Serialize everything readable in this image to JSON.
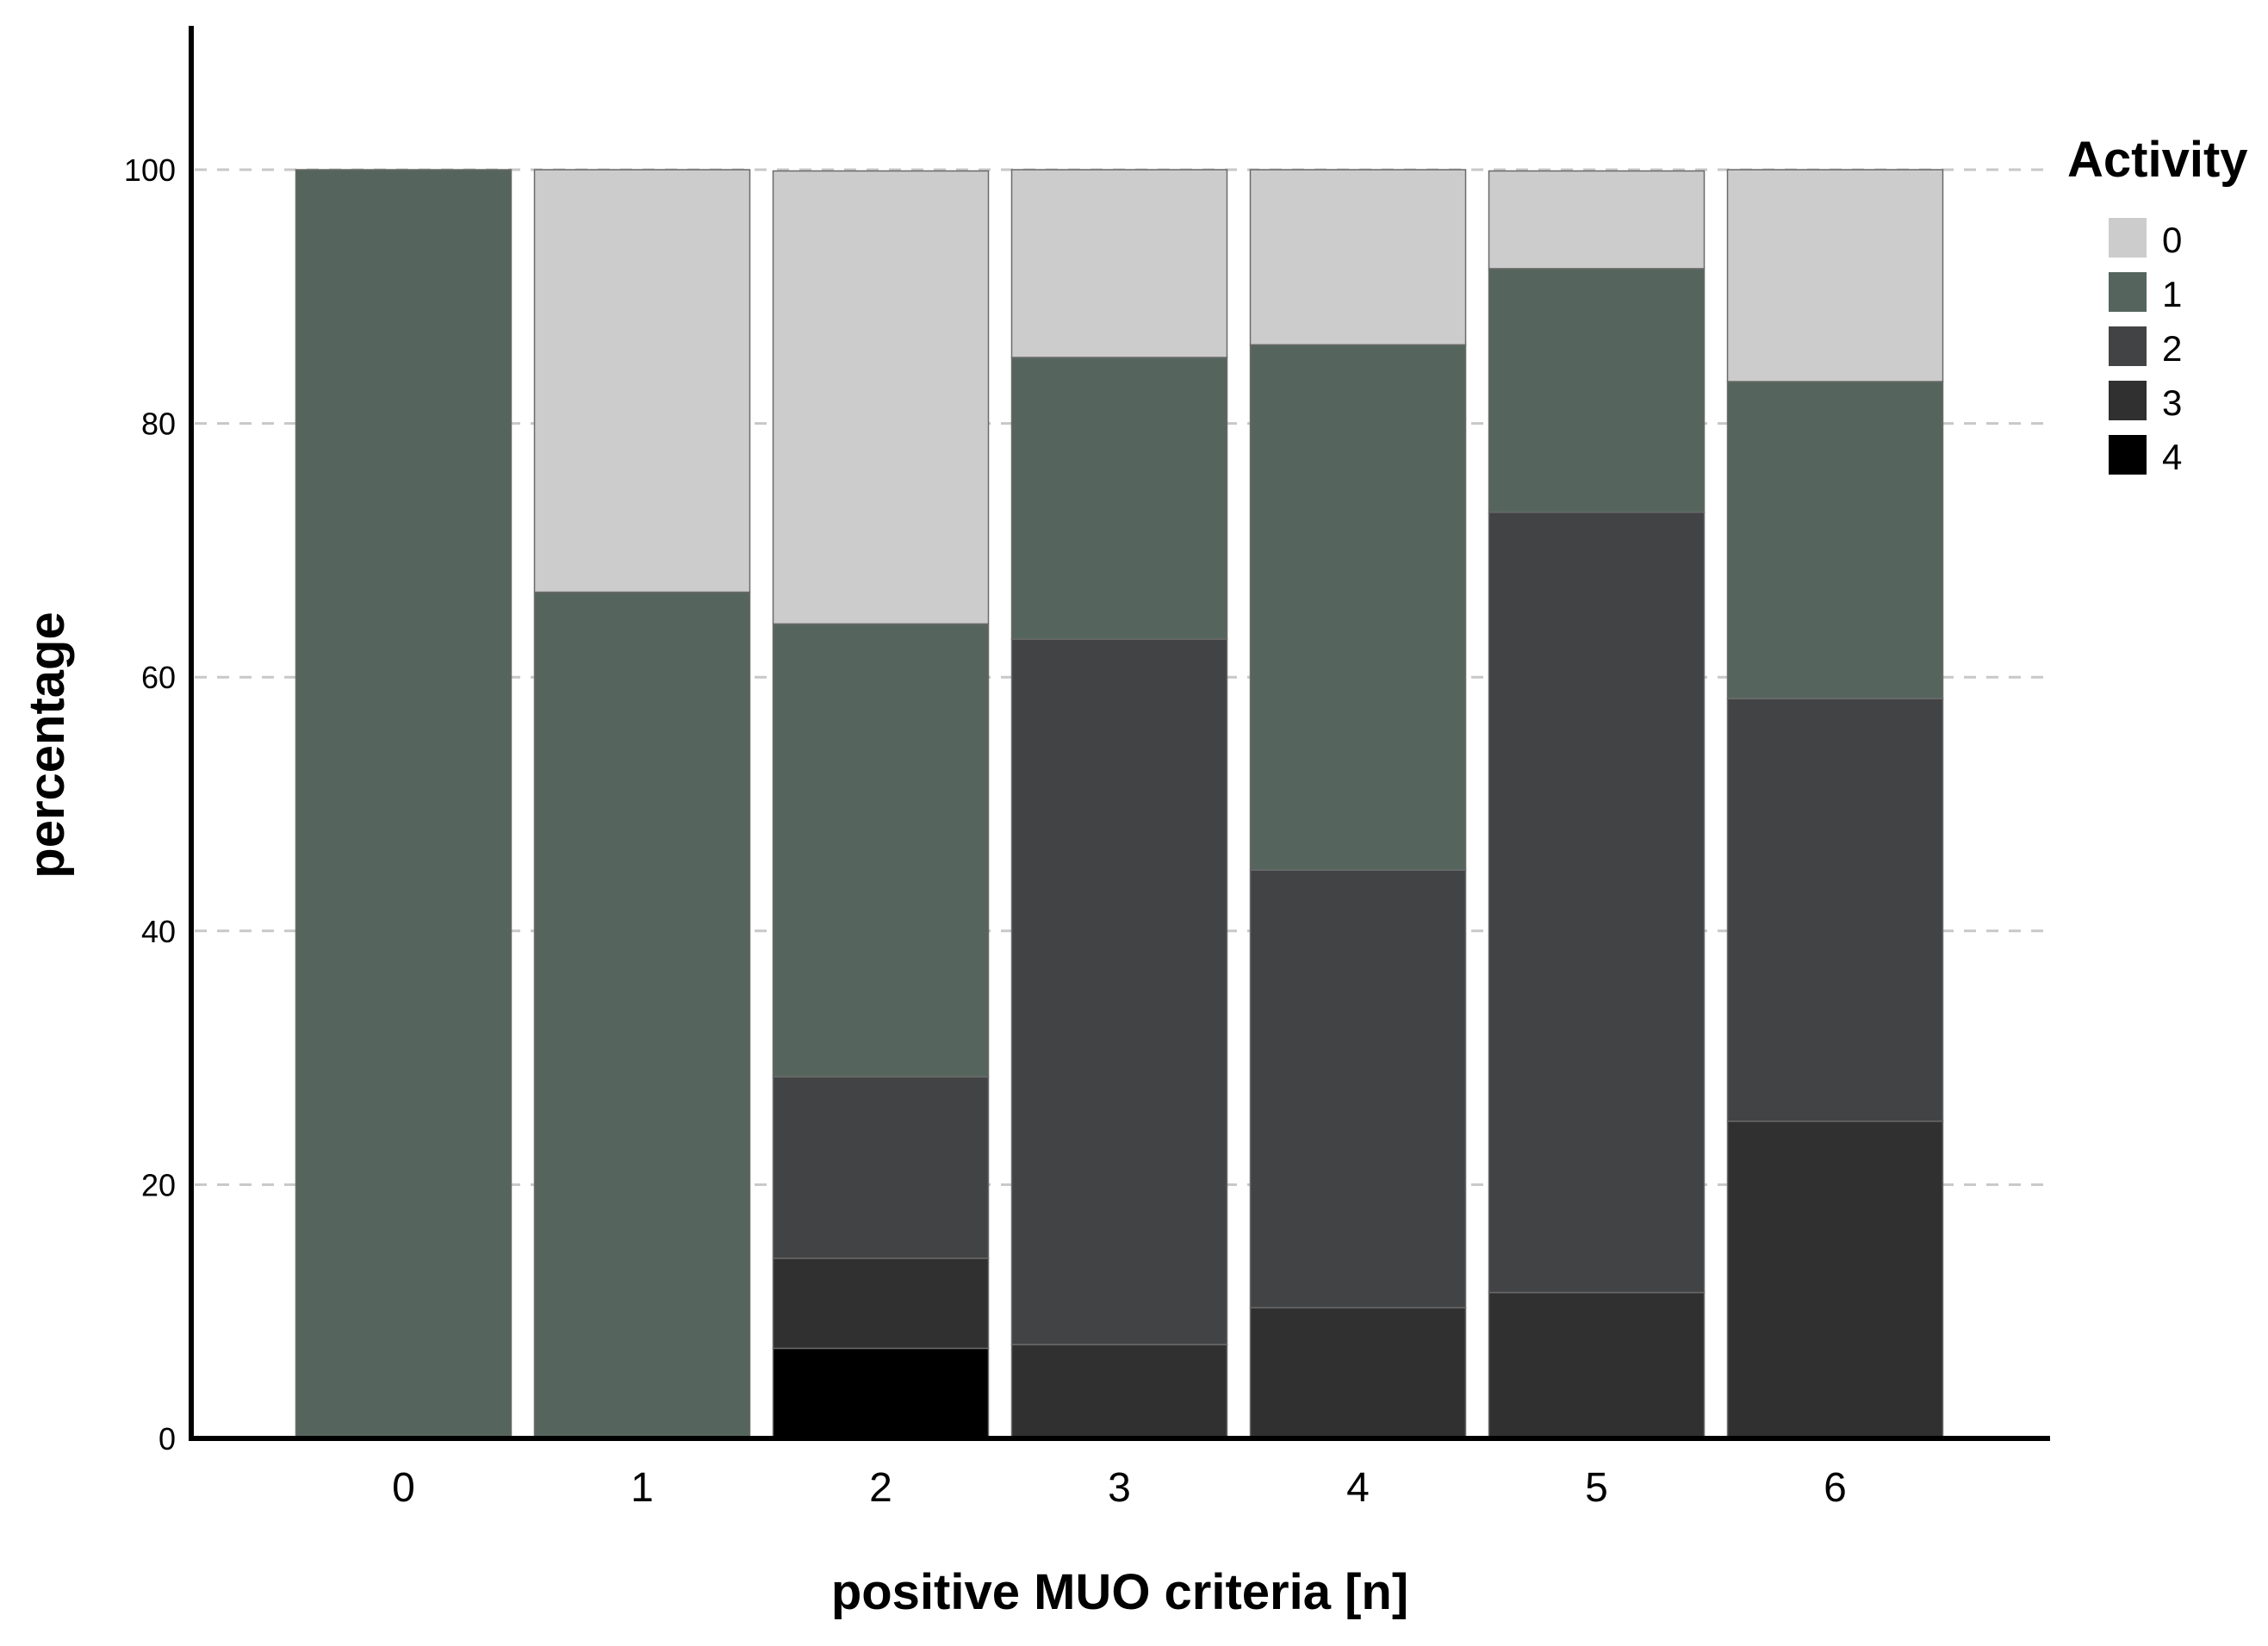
{
  "chart_data": {
    "type": "bar",
    "stacked": true,
    "xlabel": "positive MUO criteria [n]",
    "ylabel": "percentage",
    "categories": [
      "0",
      "1",
      "2",
      "3",
      "4",
      "5",
      "6"
    ],
    "ylim": [
      0,
      110
    ],
    "yticks": [
      0,
      20,
      40,
      60,
      80,
      100
    ],
    "grid": "dashed horizontal",
    "legend": {
      "title": "Activity",
      "placement": "right-top"
    },
    "series": [
      {
        "name": "4",
        "color": "#000000",
        "values": [
          0,
          0,
          7.1,
          0,
          0,
          0,
          0
        ]
      },
      {
        "name": "3",
        "color": "#303030",
        "values": [
          0,
          0,
          7.1,
          7.4,
          10.3,
          11.5,
          25.0
        ]
      },
      {
        "name": "2",
        "color": "#424345",
        "values": [
          0,
          0,
          14.3,
          55.6,
          34.5,
          61.5,
          33.3
        ]
      },
      {
        "name": "1",
        "color": "#55655d",
        "values": [
          100,
          66.7,
          35.7,
          22.2,
          41.4,
          19.2,
          25.0
        ]
      },
      {
        "name": "0",
        "color": "#cccccc",
        "values": [
          0,
          33.3,
          35.7,
          14.8,
          13.8,
          7.7,
          16.7
        ]
      }
    ]
  }
}
